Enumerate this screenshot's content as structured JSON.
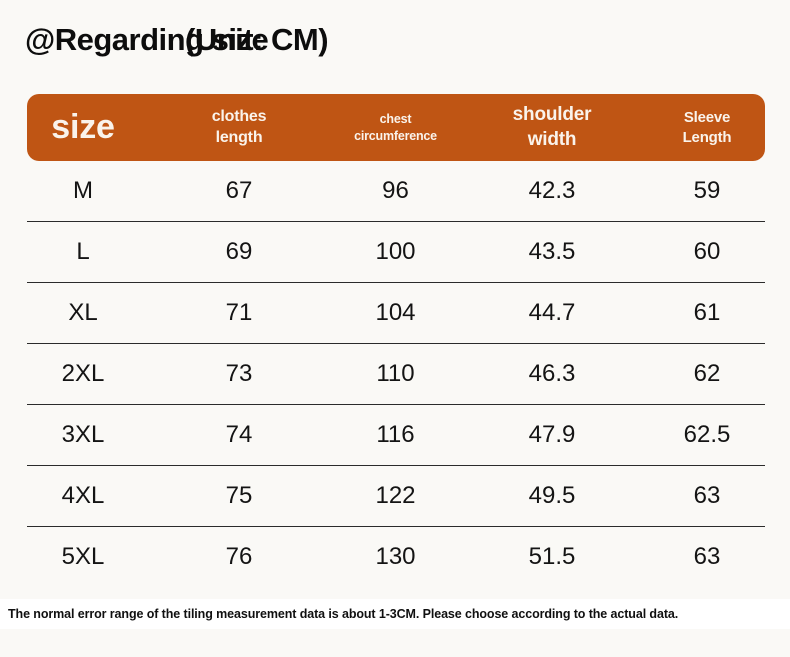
{
  "page": {
    "title": "@Regarding size",
    "title_unit": "(Unit: CM)",
    "footer_note": "The normal error range of the tiling measurement data is about 1-3CM. Please choose according to the actual data."
  },
  "colors": {
    "header_bg": "#BF5514",
    "header_text": "#FAF3EB",
    "row_divider": "#2B2B2B",
    "page_bg": "#FAF9F6",
    "footer_bg": "#FFFFFF",
    "text": "#141414"
  },
  "chart_data": {
    "type": "table",
    "title": "@Regarding size (Unit: CM)",
    "columns": [
      "size",
      "clothes length",
      "chest circumference",
      "shoulder width",
      "Sleeve Length"
    ],
    "rows": [
      [
        "M",
        67,
        96,
        42.3,
        59
      ],
      [
        "L",
        69,
        100,
        43.5,
        60
      ],
      [
        "XL",
        71,
        104,
        44.7,
        61
      ],
      [
        "2XL",
        73,
        110,
        46.3,
        62
      ],
      [
        "3XL",
        74,
        116,
        47.9,
        62.5
      ],
      [
        "4XL",
        75,
        122,
        49.5,
        63
      ],
      [
        "5XL",
        76,
        130,
        51.5,
        63
      ]
    ],
    "note": "The normal error range of the tiling measurement data is about 1-3CM. Please choose according to the actual data."
  }
}
